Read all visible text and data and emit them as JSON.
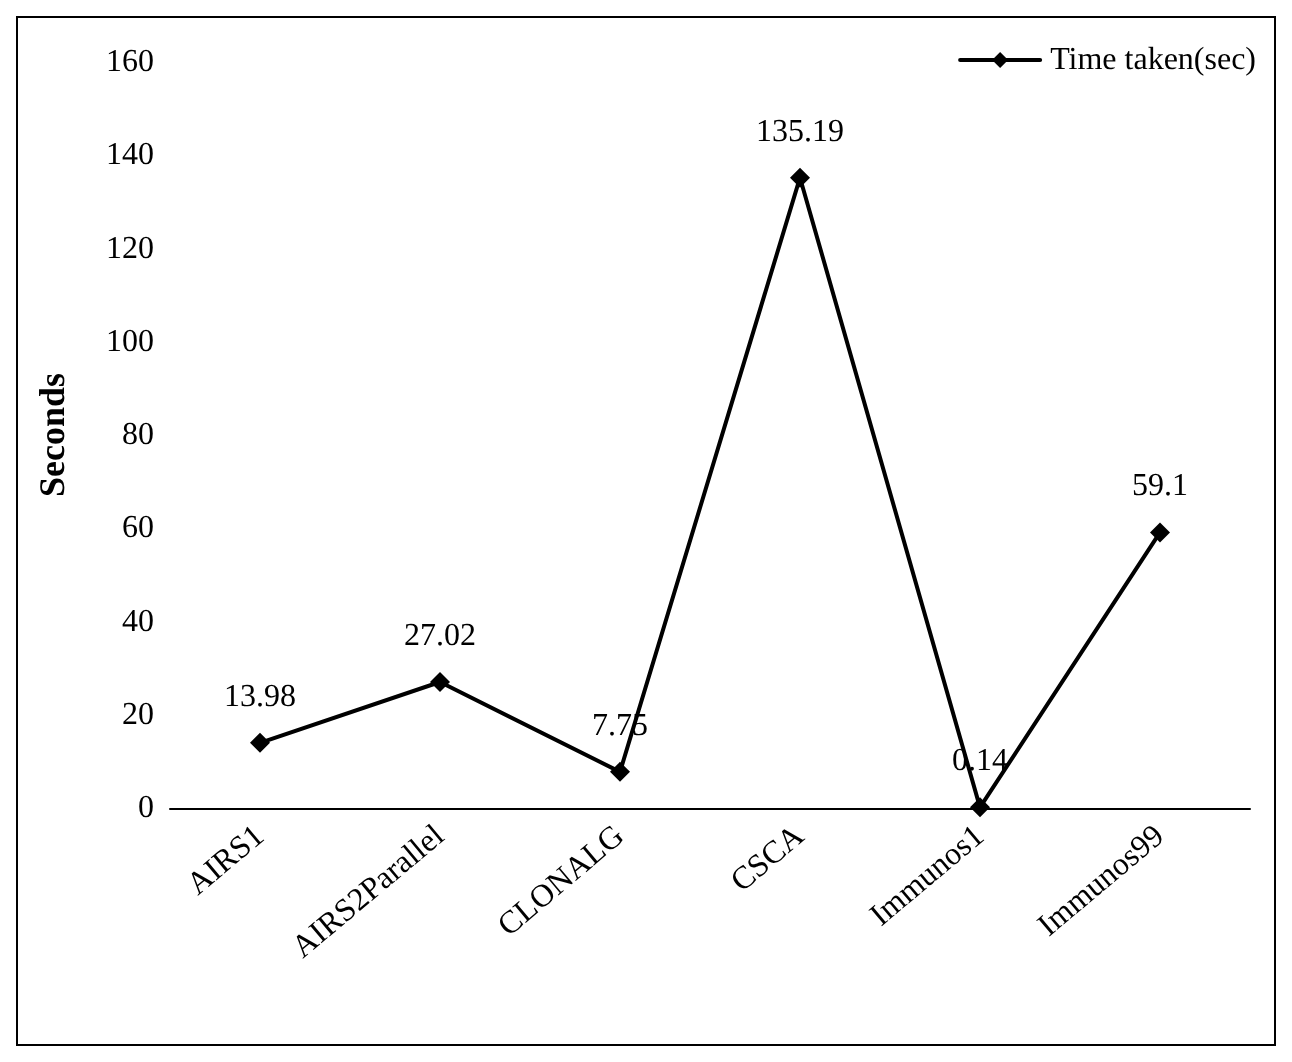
{
  "chart_data": {
    "type": "line",
    "ylabel": "Seconds",
    "categories": [
      "AIRS1",
      "AIRS2Parallel",
      "CLONALG",
      "CSCA",
      "Immunos1",
      "Immunos99"
    ],
    "series": [
      {
        "name": "Time taken(sec)",
        "color": "#000000",
        "values": [
          13.98,
          27.02,
          7.75,
          135.19,
          0.14,
          59.1
        ]
      }
    ],
    "ylim": [
      0,
      160
    ],
    "yticks": [
      0,
      20,
      40,
      60,
      80,
      100,
      120,
      140,
      160
    ],
    "grid": false,
    "legend": "top right",
    "marker": "diamond",
    "line_style": "solid",
    "data_labels": true
  }
}
